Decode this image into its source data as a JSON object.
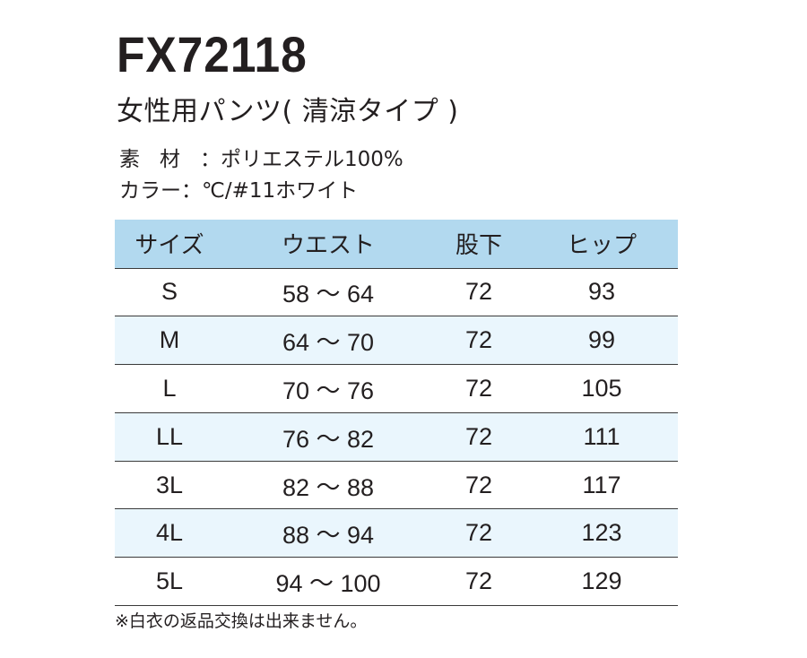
{
  "product": {
    "code": "FX72118",
    "name": "女性用パンツ( 清涼タイプ )"
  },
  "specs": {
    "material_label": "素材",
    "material_value": "：ポリエステル100%",
    "color_label": "カラー",
    "color_value": "：℃/#11ホワイト"
  },
  "size_table": {
    "headers": [
      "サイズ",
      "ウエスト",
      "股下",
      "ヒップ"
    ],
    "rows": [
      {
        "size": "S",
        "waist": "58 ～ 64",
        "inseam": "72",
        "hip": "93"
      },
      {
        "size": "M",
        "waist": "64 ～ 70",
        "inseam": "72",
        "hip": "99"
      },
      {
        "size": "L",
        "waist": "70 ～ 76",
        "inseam": "72",
        "hip": "105"
      },
      {
        "size": "LL",
        "waist": "76 ～ 82",
        "inseam": "72",
        "hip": "111"
      },
      {
        "size": "3L",
        "waist": "82 ～ 88",
        "inseam": "72",
        "hip": "117"
      },
      {
        "size": "4L",
        "waist": "88 ～ 94",
        "inseam": "72",
        "hip": "123"
      },
      {
        "size": "5L",
        "waist": "94 ～ 100",
        "inseam": "72",
        "hip": "129"
      }
    ]
  },
  "note": "※白衣の返品交換は出来ません。",
  "colors": {
    "header_background": "#b2d9ef",
    "stripe_background": "#eaf6fd",
    "text": "#231f20"
  }
}
